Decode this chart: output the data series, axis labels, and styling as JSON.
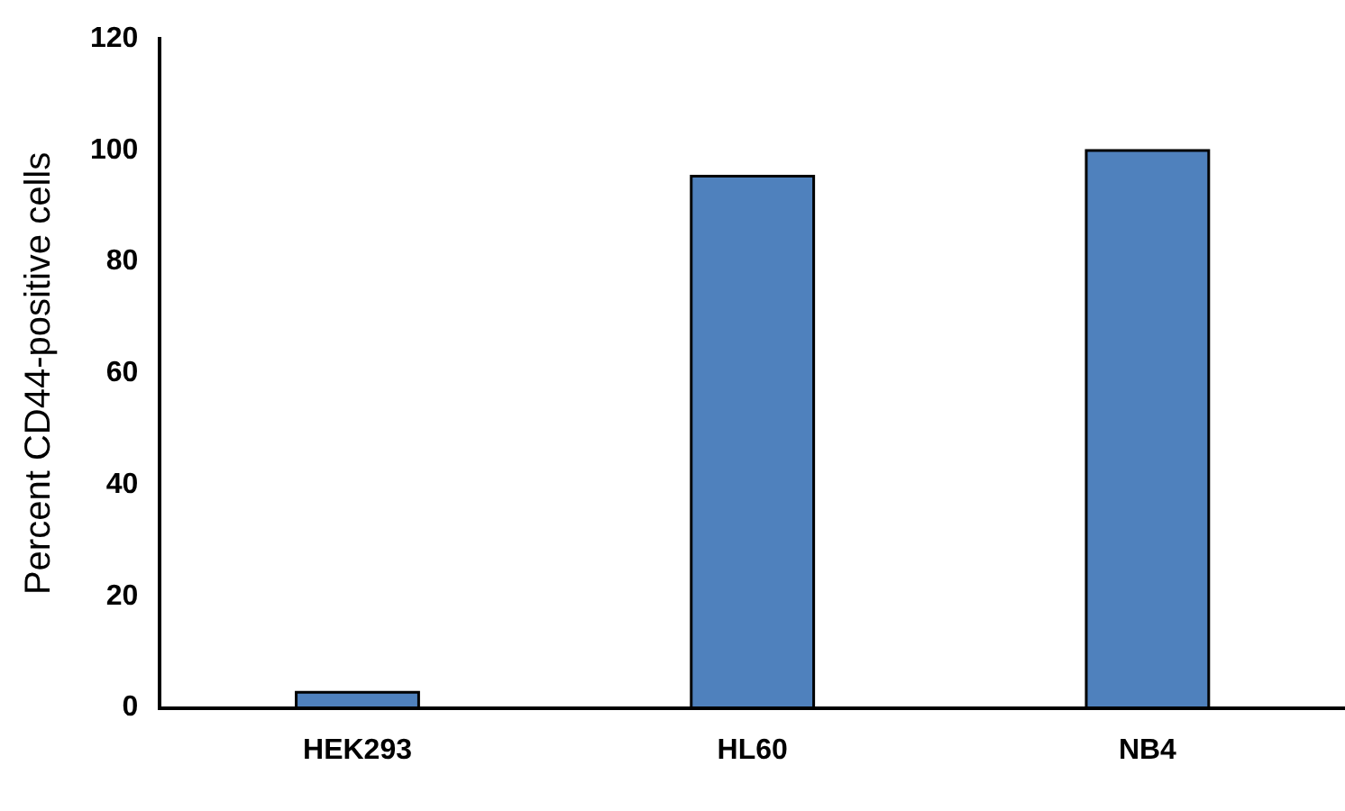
{
  "chart_data": {
    "type": "bar",
    "ylabel": "Percent CD44-positive cells",
    "categories": [
      "HEK293",
      "HL60",
      "NB4"
    ],
    "values": [
      2.8,
      95.4,
      100
    ],
    "color": "#4f81bd",
    "ylim": [
      0,
      120
    ],
    "yticks": [
      0,
      20,
      40,
      60,
      80,
      100,
      120
    ],
    "grid": false,
    "legend": false
  }
}
